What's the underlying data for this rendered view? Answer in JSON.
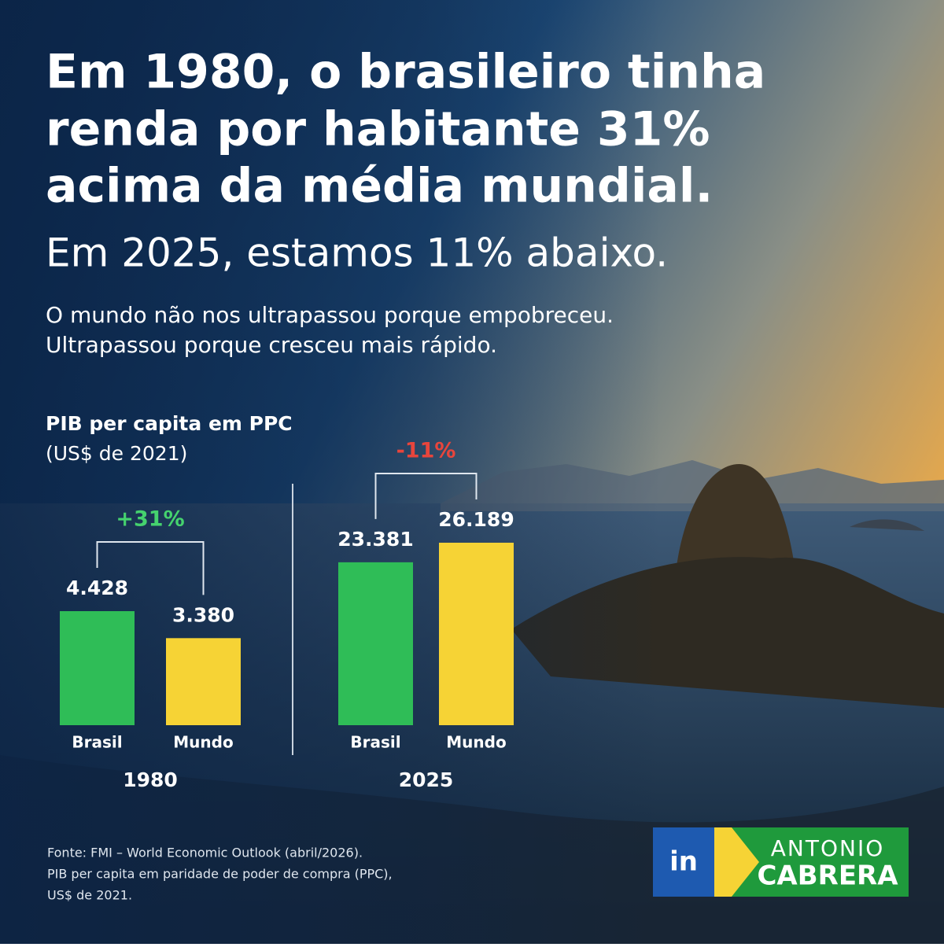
{
  "headline": [
    "Em 1980, o brasileiro tinha",
    "renda por habitante 31%",
    "acima da média mundial."
  ],
  "headline_light": "Em 2025, estamos 11% abaixo.",
  "subtitle": [
    "O mundo não nos ultrapassou porque empobreceu.",
    "Ultrapassou porque cresceu mais rápido."
  ],
  "chart_heading": {
    "title": "PIB per capita em PPC",
    "subtitle": "(US$ de 2021)"
  },
  "chart_data": [
    {
      "type": "bar",
      "xlabel": "1980",
      "categories": [
        "Brasil",
        "Mundo"
      ],
      "values": [
        4428,
        3380
      ],
      "value_labels": [
        "4.428",
        "3.380"
      ],
      "colors": [
        "#2fbd57",
        "#f6d335"
      ],
      "annotation": "+31%",
      "annotation_color": "#45d26e"
    },
    {
      "type": "bar",
      "xlabel": "2025",
      "categories": [
        "Brasil",
        "Mundo"
      ],
      "values": [
        23381,
        26189
      ],
      "value_labels": [
        "23.381",
        "26.189"
      ],
      "colors": [
        "#2fbd57",
        "#f6d335"
      ],
      "annotation": "-11%",
      "annotation_color": "#e8453c"
    }
  ],
  "source": [
    "Fonte: FMI – World Economic Outlook (abril/2026).",
    "PIB per capita em paridade de poder de compra (PPC),",
    "US$ de 2021."
  ],
  "logo": {
    "icon": "in",
    "first_name": "ANTONIO",
    "last_name": "CABRERA"
  }
}
